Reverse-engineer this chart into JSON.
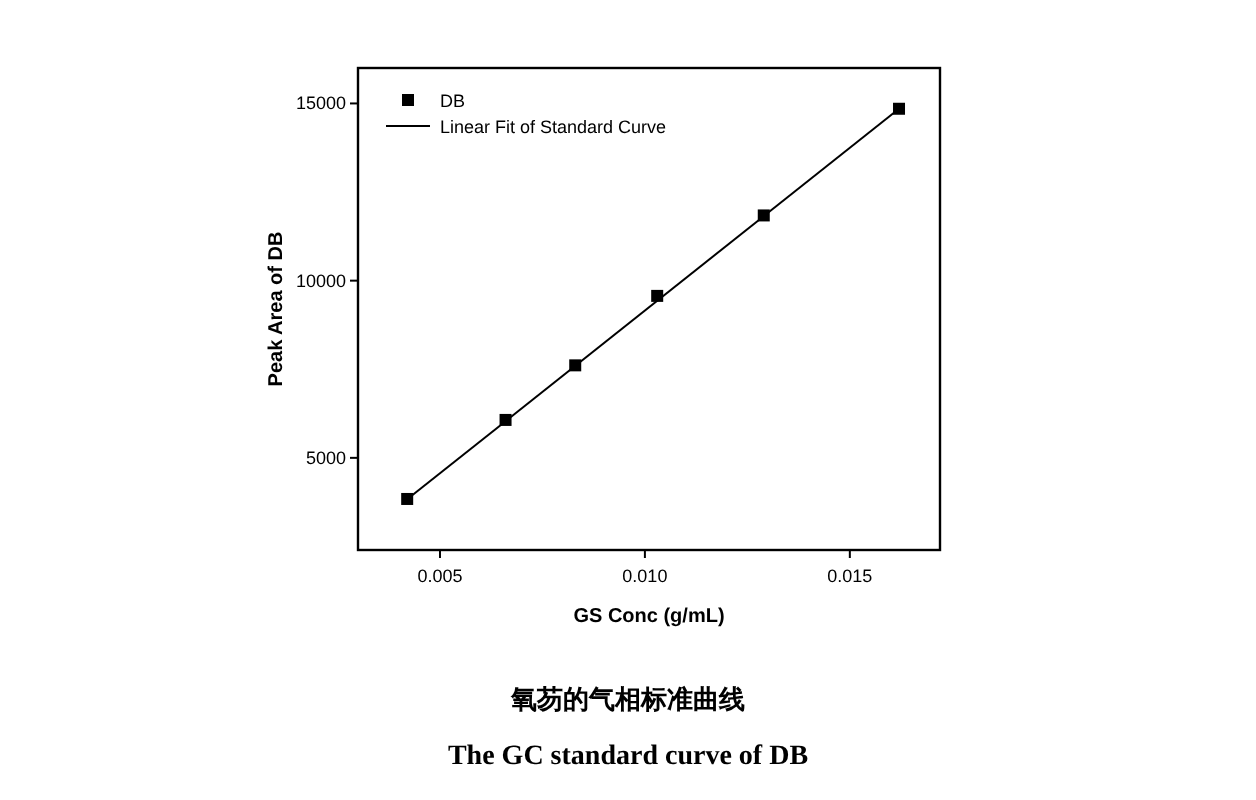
{
  "chart_data": {
    "type": "scatter",
    "title": "氧芴的气相标准曲线",
    "subtitle": "The GC standard curve of DB",
    "xlabel": "GS Conc (g/mL)",
    "ylabel": "Peak Area of DB",
    "xlim": [
      0.003,
      0.0172
    ],
    "ylim": [
      2400,
      16000
    ],
    "xticks": [
      0.005,
      {
        "value": 0.01,
        "label": "0.010"
      },
      0.015
    ],
    "yticks": [
      5000,
      10000,
      15000
    ],
    "legend": "top left",
    "series": [
      {
        "name": "DB",
        "marker": "square",
        "color": "#000000",
        "x": [
          0.0042,
          0.0066,
          0.0083,
          0.0103,
          0.0129,
          0.0162
        ],
        "values": [
          3840,
          6070,
          7610,
          9570,
          11840,
          14850
        ]
      },
      {
        "name": "Linear Fit of Standard Curve",
        "type": "line",
        "marker": "none",
        "color": "#000000",
        "x": [
          0.0042,
          0.0162
        ],
        "values": [
          3830,
          14850
        ]
      }
    ]
  }
}
